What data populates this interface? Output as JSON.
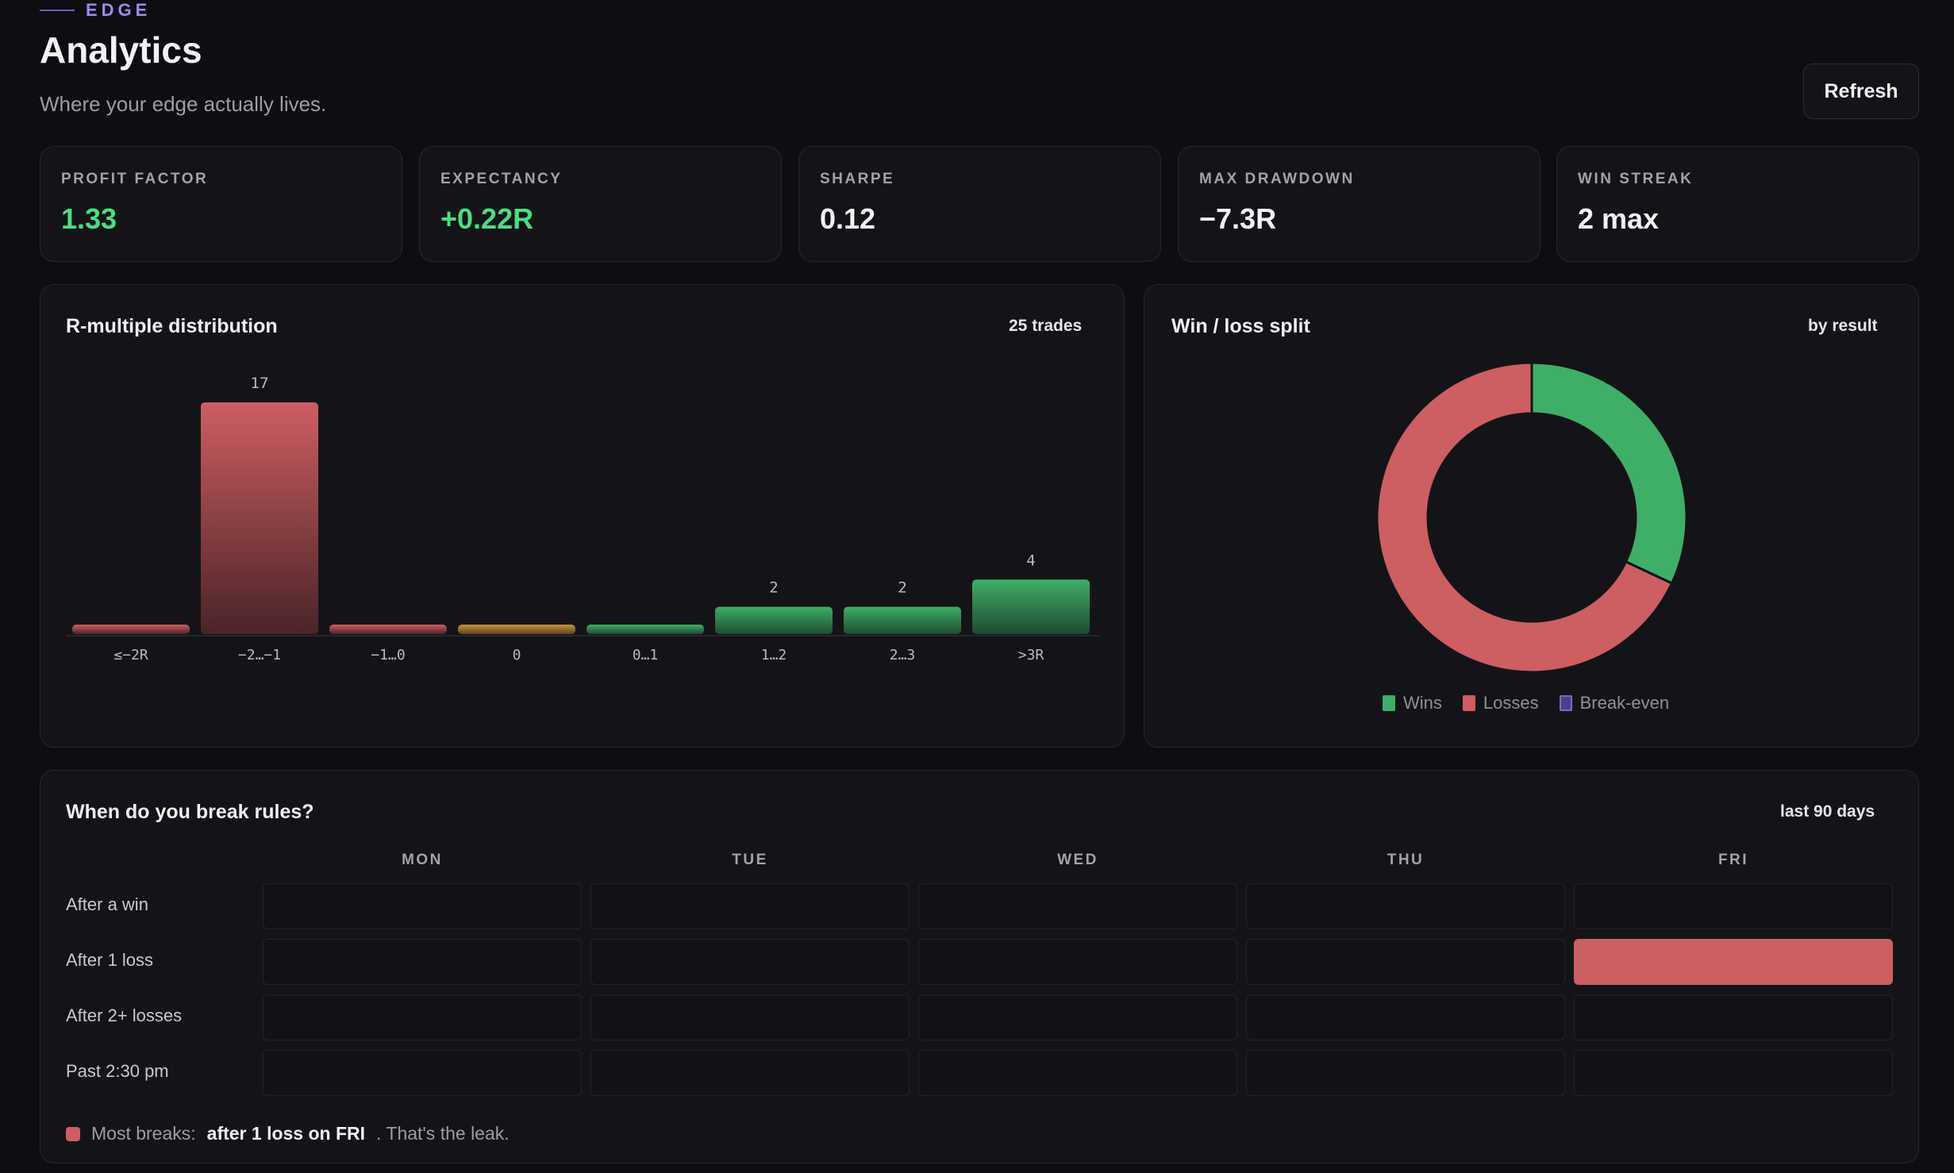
{
  "header": {
    "eyebrow": "EDGE",
    "title": "Analytics",
    "subtitle": "Where your edge actually lives.",
    "refresh_label": "Refresh"
  },
  "stats": [
    {
      "label": "PROFIT FACTOR",
      "value": "1.33",
      "color": "#4ade80"
    },
    {
      "label": "EXPECTANCY",
      "value": "+0.22R",
      "color": "#4ade80"
    },
    {
      "label": "SHARPE",
      "value": "0.12",
      "color": "#f3f3f5"
    },
    {
      "label": "MAX DRAWDOWN",
      "value": "−7.3R",
      "color": "#f3f3f5"
    },
    {
      "label": "WIN STREAK",
      "value": "2 max",
      "color": "#f3f3f5"
    }
  ],
  "r_panel": {
    "title": "R-multiple distribution",
    "meta": "25 trades"
  },
  "wl_panel": {
    "title": "Win / loss split",
    "meta": "by result"
  },
  "heatmap_panel": {
    "title": "When do you break rules?",
    "meta": "last 90 days",
    "columns": [
      "MON",
      "TUE",
      "WED",
      "THU",
      "FRI"
    ],
    "rows": [
      "After a win",
      "After 1 loss",
      "After 2+ losses",
      "Past 2:30 pm"
    ],
    "values": [
      [
        0,
        0,
        0,
        0,
        0
      ],
      [
        0,
        0,
        0,
        0,
        1
      ],
      [
        0,
        0,
        0,
        0,
        0
      ],
      [
        0,
        0,
        0,
        0,
        0
      ]
    ],
    "footnote_prefix": "Most breaks:",
    "footnote_highlight": "after 1 loss on FRI",
    "footnote_suffix": ". That's the leak."
  },
  "chart_data": [
    {
      "type": "bar",
      "categories": [
        "≤−2R",
        "−2…−1",
        "−1…0",
        "0",
        "0…1",
        "1…2",
        "2…3",
        ">3R"
      ],
      "values": [
        0,
        17,
        0,
        0,
        0,
        2,
        2,
        4
      ],
      "data_labels": [
        "",
        "17",
        "",
        "",
        "",
        "2",
        "2",
        "4"
      ],
      "colors": [
        "#cd5e62",
        "#cd5e62",
        "#cd5e62",
        "#c8913a",
        "#3fae67",
        "#3fae67",
        "#3fae67",
        "#3fae67"
      ],
      "title": "R-multiple distribution",
      "ylim": [
        0,
        17
      ],
      "grid": false
    },
    {
      "type": "pie",
      "donut": true,
      "labels": [
        "Wins",
        "Losses",
        "Break-even"
      ],
      "values": [
        8,
        17,
        0
      ],
      "colors": [
        "#3fae67",
        "#cd5e62",
        "#7c6bc4"
      ],
      "title": "Win / loss split",
      "legend": "bottom"
    }
  ]
}
